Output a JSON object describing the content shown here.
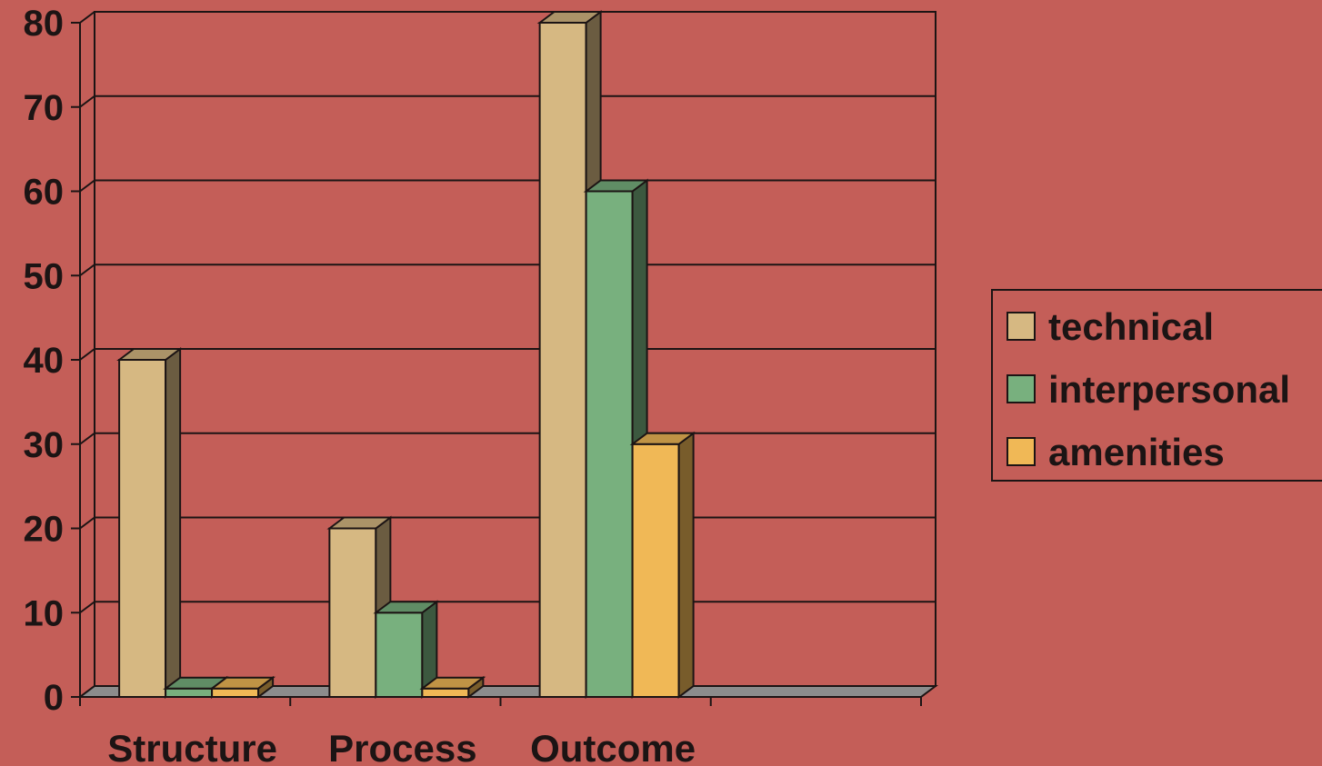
{
  "chart_data": {
    "type": "bar",
    "style": "3d-clustered",
    "title": "",
    "xlabel": "",
    "ylabel": "",
    "categories": [
      "Structure",
      "Process",
      "Outcome",
      ""
    ],
    "series": [
      {
        "name": "technical",
        "values": [
          40,
          20,
          80,
          0
        ],
        "color": "#d6b882"
      },
      {
        "name": "interpersonal",
        "values": [
          1,
          10,
          60,
          0
        ],
        "color": "#78b07e"
      },
      {
        "name": "amenities",
        "values": [
          1,
          1,
          30,
          0
        ],
        "color": "#f0b856"
      }
    ],
    "ylim": [
      0,
      80
    ],
    "yticks": [
      0,
      10,
      20,
      30,
      40,
      50,
      60,
      70,
      80
    ],
    "grid": true,
    "legend_position": "right",
    "colors": {
      "background": "#c45e58",
      "floor": "#8c8c8c",
      "gridline": "#1c1414"
    }
  }
}
